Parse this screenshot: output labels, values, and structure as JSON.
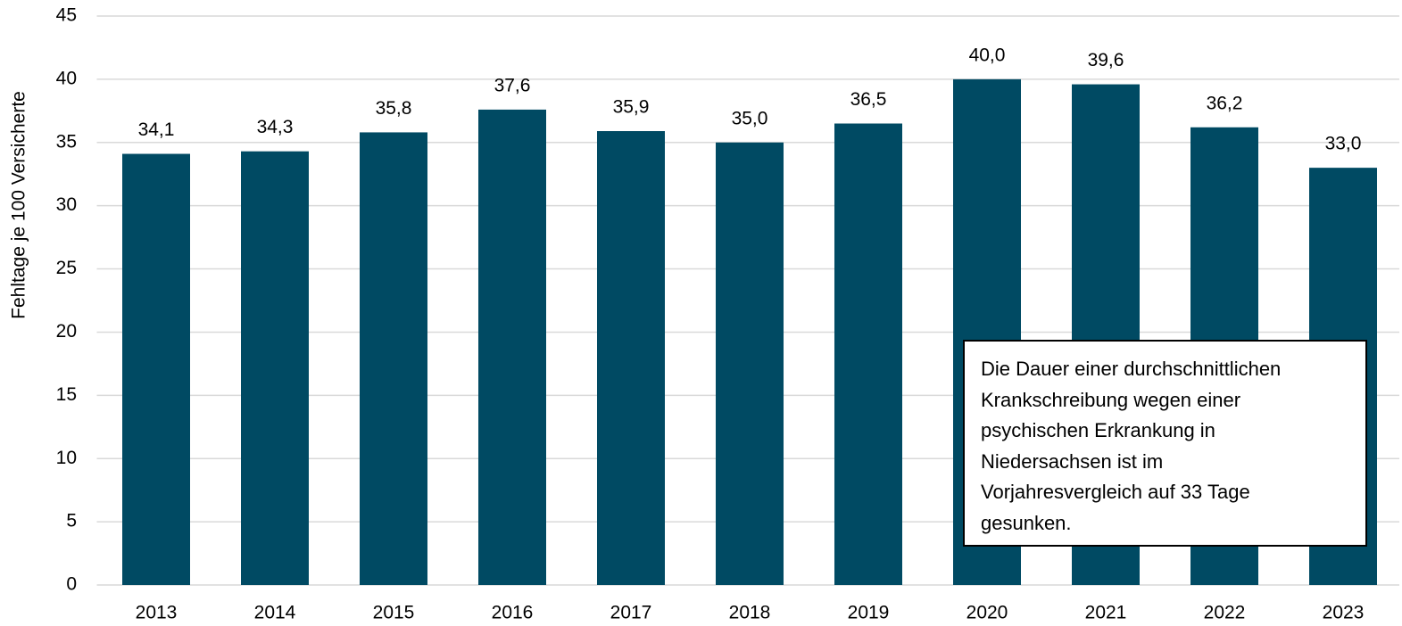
{
  "chart_data": {
    "type": "bar",
    "y_label": "Fehltage  je 100 Versicherte",
    "categories": [
      "2013",
      "2014",
      "2015",
      "2016",
      "2017",
      "2018",
      "2019",
      "2020",
      "2021",
      "2022",
      "2023"
    ],
    "values": [
      34.1,
      34.3,
      35.8,
      37.6,
      35.9,
      35.0,
      36.5,
      40.0,
      39.6,
      36.2,
      33.0
    ],
    "value_labels": [
      "34,1",
      "34,3",
      "35,8",
      "37,6",
      "35,9",
      "35,0",
      "36,5",
      "40,0",
      "39,6",
      "36,2",
      "33,0"
    ],
    "color": "#004a63",
    "ylim": [
      0,
      45
    ],
    "yticks": [
      0,
      5,
      10,
      15,
      20,
      25,
      30,
      35,
      40,
      45
    ],
    "grid": true,
    "annotation": {
      "lines": [
        "Die Dauer einer durchschnittlichen",
        "Krankschreibung wegen einer",
        "psychischen Erkrankung in",
        "Niedersachsen ist im",
        "Vorjahresvergleich auf 33 Tage",
        "gesunken."
      ]
    }
  }
}
